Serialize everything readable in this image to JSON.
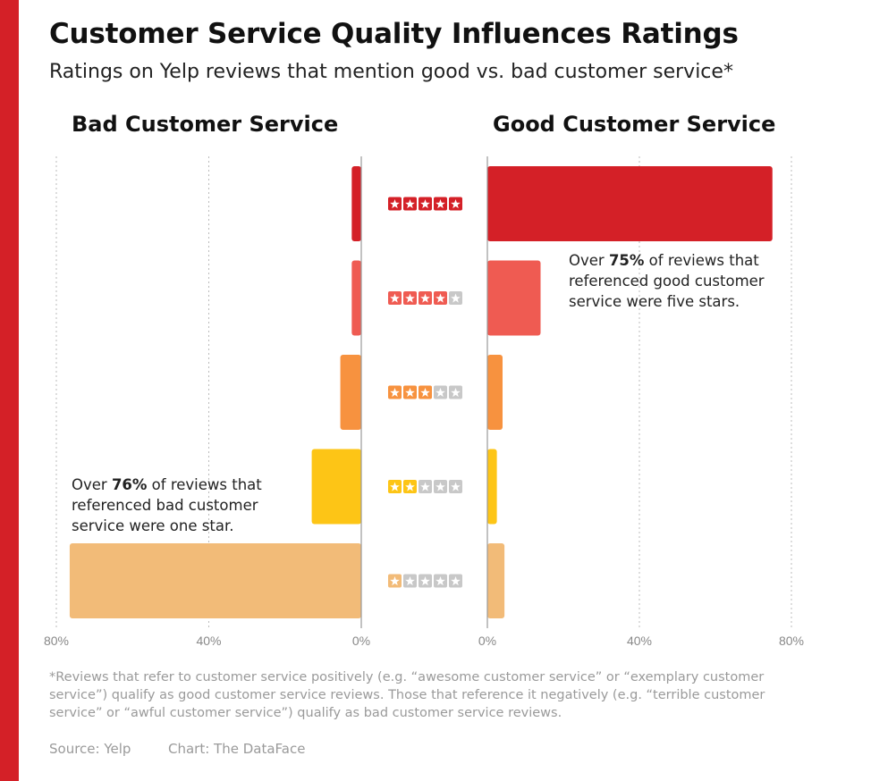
{
  "title": "Customer Service Quality Influences Ratings",
  "subtitle": "Ratings on Yelp reviews that mention good vs. bad customer service*",
  "footnote": "*Reviews that refer to customer service positively (e.g. “awesome customer service” or “exemplary customer service”) qualify as good customer service reviews. Those that reference it negatively (e.g. “terrible customer service” or “awful customer service”) qualify as bad customer service reviews.",
  "source": "Source: Yelp",
  "credit": "Chart: The DataFace",
  "annotations": {
    "good": {
      "pre": "Over ",
      "value": "75%",
      "post": " of reviews that referenced good customer service were five stars."
    },
    "bad": {
      "pre": "Over ",
      "value": "76%",
      "post": " of reviews that referenced bad customer service were one star."
    }
  },
  "colors": {
    "brand": "#d42027",
    "star_off": "#c8c8c8",
    "grid": "#bbbbbb",
    "axis": "#999999",
    "tick_text": "#888888"
  },
  "chart_data": {
    "type": "bar",
    "orientation": "horizontal-diverging",
    "categories": [
      "5 stars",
      "4 stars",
      "3 stars",
      "2 stars",
      "1 star"
    ],
    "star_counts": [
      5,
      4,
      3,
      2,
      1
    ],
    "bar_colors": [
      "#d42027",
      "#ef5b52",
      "#f7923f",
      "#fdc516",
      "#f2bb78"
    ],
    "series": [
      {
        "name": "Bad Customer Service",
        "values": [
          2.5,
          2.5,
          5.5,
          13,
          76.5
        ]
      },
      {
        "name": "Good Customer Service",
        "values": [
          75,
          14,
          4,
          2.5,
          4.5
        ]
      }
    ],
    "xlim": [
      0,
      80
    ],
    "xticks": [
      80,
      40,
      0
    ],
    "tick_labels": [
      "80%",
      "40%",
      "0%"
    ],
    "good_tick_labels": [
      "0%",
      "40%",
      "80%"
    ],
    "grid": true
  }
}
